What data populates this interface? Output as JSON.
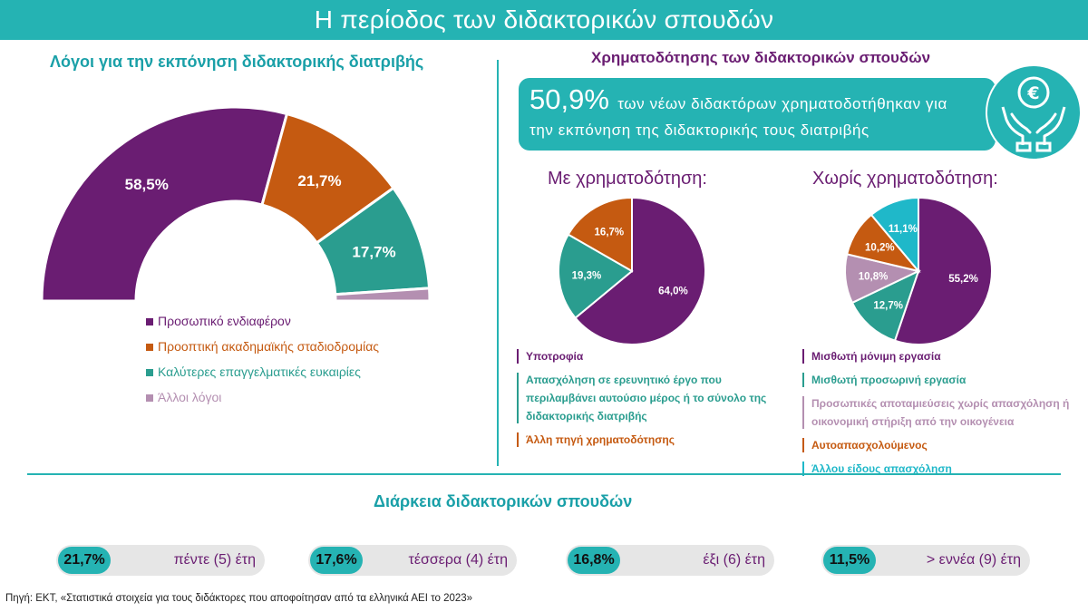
{
  "title": "Η περίοδος των διδακτορικών σπουδών",
  "reasons": {
    "heading": "Λόγοι για την εκπόνηση διδακτορικής διατριβής"
  },
  "funding": {
    "heading": "Χρηματοδότησης των διδακτορικών σπουδών",
    "banner_value": "50,9%",
    "banner_line1": "των νέων διδακτόρων χρηματοδοτήθηκαν για",
    "banner_line2": "την εκπόνηση της διδακτορικής τους διατριβής",
    "banner_icon": "euro-hands-icon",
    "with_title": "Με χρηματοδότηση:",
    "without_title": "Χωρίς χρηματοδότηση:"
  },
  "duration": {
    "heading": "Διάρκεια διδακτορικών σπουδών",
    "items": [
      {
        "value": "21,7%",
        "label": "πέντε (5) έτη"
      },
      {
        "value": "17,6%",
        "label": "τέσσερα (4) έτη"
      },
      {
        "value": "16,8%",
        "label": "έξι (6) έτη"
      },
      {
        "value": "11,5%",
        "label": "> εννέα (9) έτη"
      }
    ]
  },
  "source": "Πηγή: ΕΚΤ, «Στατιστικά στοιχεία για τους διδάκτορες που αποφοίτησαν από τα ελληνικά ΑΕΙ το 2023»",
  "colors": {
    "teal": "#25b3b3",
    "purple": "#6a1d72",
    "orange": "#c55a11",
    "green": "#2a9d8f",
    "mauve": "#b48fb1",
    "cyan": "#1fb8c9"
  },
  "chart_data": [
    {
      "type": "pie",
      "shape": "semicircle-donut",
      "categories": [
        "Προσωπικό ενδιαφέρον",
        "Προοπτική ακαδημαϊκής σταδιοδρομίας",
        "Καλύτερες επαγγελματικές ευκαιρίες",
        "Άλλοι λόγοι"
      ],
      "values": [
        58.5,
        21.7,
        17.7,
        2.1
      ],
      "labels": [
        "58,5%",
        "21,7%",
        "17,7%",
        ""
      ],
      "colors": [
        "#6a1d72",
        "#c55a11",
        "#2a9d8f",
        "#b48fb1"
      ],
      "legend": "bottom"
    },
    {
      "type": "pie",
      "title": "Με χρηματοδότηση:",
      "categories": [
        "Υποτροφία",
        "Απασχόληση σε ερευνητικό έργο που περιλαμβάνει αυτούσιο μέρος ή το σύνολο της διδακτορικής διατριβής",
        "Άλλη πηγή χρηματοδότησης"
      ],
      "values": [
        64.0,
        19.3,
        16.7
      ],
      "labels": [
        "64,0%",
        "19,3%",
        "16,7%"
      ],
      "colors": [
        "#6a1d72",
        "#2a9d8f",
        "#c55a11"
      ],
      "legend": "bottom"
    },
    {
      "type": "pie",
      "title": "Χωρίς χρηματοδότηση:",
      "categories": [
        "Μισθωτή μόνιμη εργασία",
        "Μισθωτή προσωρινή εργασία",
        "Προσωπικές αποταμιεύσεις χωρίς απασχόληση ή οικονομική στήριξη από την οικογένεια",
        "Αυτοαπασχολούμενος",
        "Άλλου είδους απασχόληση"
      ],
      "values": [
        55.2,
        12.7,
        10.8,
        10.2,
        11.1
      ],
      "labels": [
        "55,2%",
        "12,7%",
        "10,8%",
        "10,2%",
        "11,1%"
      ],
      "colors": [
        "#6a1d72",
        "#2a9d8f",
        "#b48fb1",
        "#c55a11",
        "#1fb8c9"
      ],
      "legend": "bottom"
    }
  ]
}
